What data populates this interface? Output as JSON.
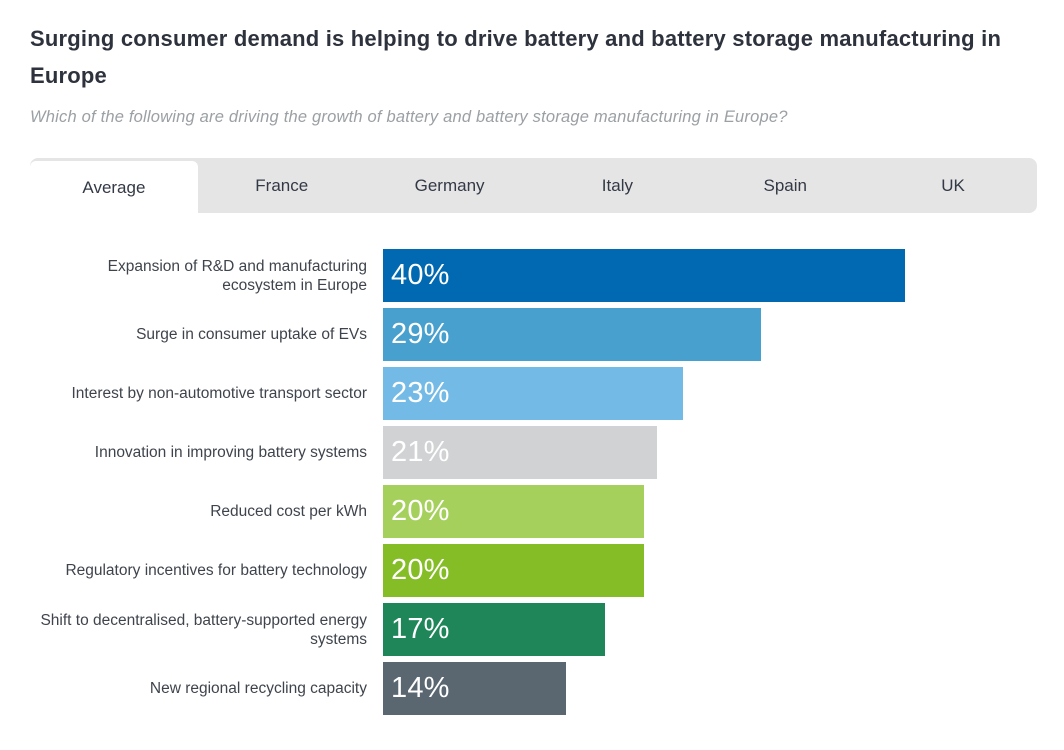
{
  "header": {
    "title": "Surging consumer demand is helping to drive battery and battery storage manufacturing in Europe",
    "subtitle": "Which of the following are driving the growth of battery and battery storage manufacturing in Europe?"
  },
  "tabs": [
    {
      "label": "Average",
      "active": true
    },
    {
      "label": "France",
      "active": false
    },
    {
      "label": "Germany",
      "active": false
    },
    {
      "label": "Italy",
      "active": false
    },
    {
      "label": "Spain",
      "active": false
    },
    {
      "label": "UK",
      "active": false
    }
  ],
  "chart_data": {
    "type": "bar",
    "orientation": "horizontal",
    "title": "Surging consumer demand is helping to drive battery and battery storage manufacturing in Europe",
    "subtitle": "Which of the following are driving the growth of battery and battery storage manufacturing in Europe?",
    "categories": [
      "Expansion of R&D and manufacturing ecosystem in Europe",
      "Surge in consumer uptake of EVs",
      "Interest by non-automotive transport sector",
      "Innovation in improving battery systems",
      "Reduced cost per kWh",
      "Regulatory incentives for battery technology",
      "Shift to decentralised, battery-supported energy systems",
      "New regional recycling capacity"
    ],
    "values": [
      40,
      29,
      23,
      21,
      20,
      20,
      17,
      14
    ],
    "value_labels": [
      "40%",
      "29%",
      "23%",
      "21%",
      "20%",
      "20%",
      "17%",
      "14%"
    ],
    "bar_colors": [
      "#0069b1",
      "#48a0ce",
      "#73bbe6",
      "#d0d2d3",
      "#a6d05c",
      "#85bd27",
      "#1e8659",
      "#5a6670"
    ],
    "xlabel": "",
    "ylabel": "",
    "xlim": [
      0,
      40
    ],
    "grid": false,
    "legend": false,
    "active_tab": "Average",
    "colors": {
      "tab_bar_background": "#e5e5e6",
      "active_tab_background": "#ffffff",
      "title_text": "#2d323c",
      "subtitle_text": "#9ba0a4",
      "label_text": "#3f444c",
      "bar_value_text": "#ffffff"
    }
  }
}
